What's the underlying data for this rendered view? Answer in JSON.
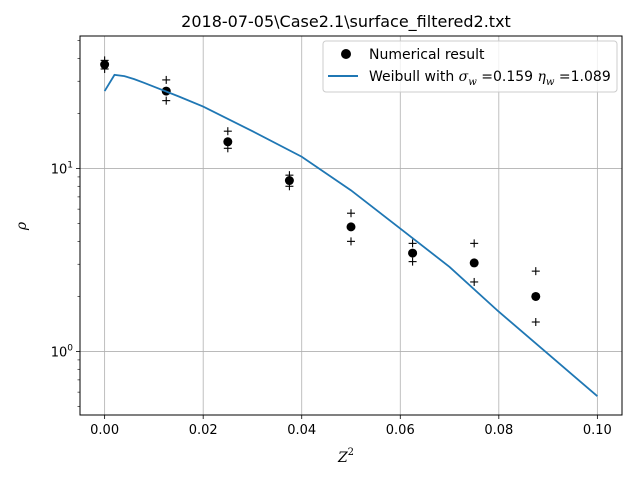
{
  "chart_data": {
    "type": "scatter",
    "title": "2018-07-05\\Case2.1\\surface_filtered2.txt",
    "xlabel_base": "Z",
    "xlabel_sup": "2",
    "ylabel": "ρ",
    "xlim": [
      -0.005,
      0.105
    ],
    "ylim": [
      0.45,
      53
    ],
    "yscale": "log",
    "grid": true,
    "legend_position": "top-right",
    "x_ticks": [
      {
        "value": 0.0,
        "label": "0.00"
      },
      {
        "value": 0.02,
        "label": "0.02"
      },
      {
        "value": 0.04,
        "label": "0.04"
      },
      {
        "value": 0.06,
        "label": "0.06"
      },
      {
        "value": 0.08,
        "label": "0.08"
      },
      {
        "value": 0.1,
        "label": "0.10"
      }
    ],
    "y_ticks": [
      {
        "value": 1,
        "base": "10",
        "exp": "0"
      },
      {
        "value": 10,
        "base": "10",
        "exp": "1"
      }
    ],
    "series": [
      {
        "name": "Numerical result",
        "kind": "points",
        "color": "#000000",
        "x": [
          0.0,
          0.0125,
          0.025,
          0.0375,
          0.05,
          0.0625,
          0.075,
          0.0875
        ],
        "y": [
          37.0,
          26.5,
          14.0,
          8.6,
          4.8,
          3.45,
          3.05,
          2.0
        ]
      },
      {
        "name": "",
        "kind": "plus",
        "color": "#000000",
        "x": [
          0.0,
          0.0125,
          0.025,
          0.0375,
          0.05,
          0.0625,
          0.075,
          0.0875
        ],
        "y": [
          39.0,
          30.5,
          16.0,
          9.2,
          5.7,
          3.9,
          3.9,
          2.75
        ]
      },
      {
        "name": "",
        "kind": "plus",
        "color": "#000000",
        "x": [
          0.0,
          0.0125,
          0.025,
          0.0375,
          0.05,
          0.0625,
          0.075,
          0.0875
        ],
        "y": [
          35.0,
          23.5,
          12.9,
          8.0,
          4.0,
          3.1,
          2.4,
          1.45
        ]
      },
      {
        "name": "Weibull with σw =0.159 ηw =1.089",
        "kind": "line",
        "color": "#1f77b4",
        "x": [
          0.0,
          0.002,
          0.004,
          0.006,
          0.008,
          0.01,
          0.015,
          0.02,
          0.03,
          0.04,
          0.05,
          0.06,
          0.07,
          0.08,
          0.09,
          0.1
        ],
        "y": [
          26.5,
          32.5,
          32.0,
          30.8,
          29.4,
          28.0,
          24.8,
          21.8,
          16.0,
          11.6,
          7.6,
          4.7,
          2.9,
          1.65,
          0.97,
          0.57
        ]
      }
    ],
    "legend": {
      "entry1": "Numerical result",
      "entry2_prefix": "Weibull with ",
      "sigma_sym": "σ",
      "sigma_sub": "w",
      "sigma_val": " =0.159 ",
      "eta_sym": "η",
      "eta_sub": "w",
      "eta_val": " =1.089"
    }
  }
}
